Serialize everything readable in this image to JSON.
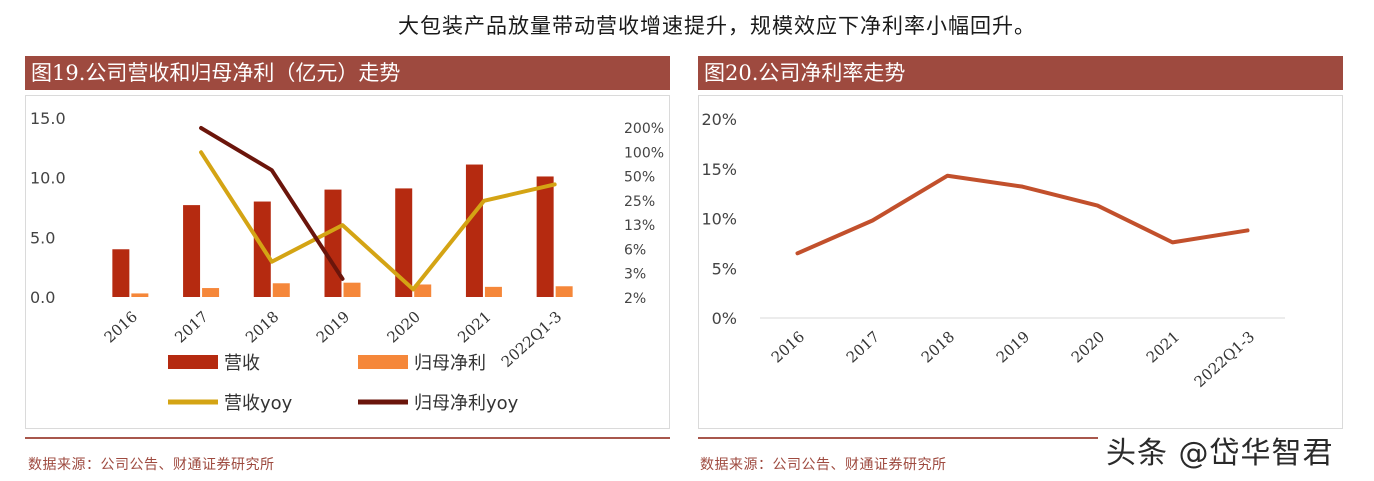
{
  "heading": "大包装产品放量带动营收增速提升，规模效应下净利率小幅回升。",
  "charts": [
    {
      "title": "图19.公司营收和归母净利（亿元）走势",
      "source": "数据来源：公司公告、财通证券研究所"
    },
    {
      "title": "图20.公司净利率走势",
      "source": "数据来源：公司公告、财通证券研究所"
    }
  ],
  "watermark": "头条 @岱华智君",
  "colors": {
    "revenue": "#b52a10",
    "net_profit": "#f5873a",
    "revenue_yoy": "#d4a414",
    "net_profit_yoy": "#6b150b",
    "margin": "#c2502c",
    "title_bg": "#9e4a3f"
  },
  "chart_data": [
    {
      "type": "bar",
      "title": "图19.公司营收和归母净利（亿元）走势",
      "categories": [
        "2016",
        "2017",
        "2018",
        "2019",
        "2020",
        "2021",
        "2022Q1-3"
      ],
      "ylim": [
        0,
        15
      ],
      "yticks": [
        "15.0",
        "10.0",
        "5.0",
        "0.0"
      ],
      "y2ticks": [
        "200%",
        "100%",
        "50%",
        "25%",
        "13%",
        "6%",
        "3%",
        "2%"
      ],
      "series": [
        {
          "name": "营收",
          "kind": "bar",
          "axis": "left",
          "values": [
            4.0,
            7.7,
            8.0,
            9.0,
            9.1,
            11.1,
            10.1
          ]
        },
        {
          "name": "归母净利",
          "kind": "bar",
          "axis": "left",
          "values": [
            0.3,
            0.75,
            1.15,
            1.2,
            1.05,
            0.85,
            0.9
          ]
        },
        {
          "name": "营收yoy",
          "kind": "line",
          "axis": "right",
          "values": [
            null,
            100,
            4.4,
            12.5,
            2,
            25,
            40
          ]
        },
        {
          "name": "归母净利yoy",
          "kind": "line",
          "axis": "right",
          "values": [
            null,
            200,
            60,
            2.7,
            null,
            null,
            null
          ]
        }
      ]
    },
    {
      "type": "line",
      "title": "图20.公司净利率走势",
      "categories": [
        "2016",
        "2017",
        "2018",
        "2019",
        "2020",
        "2021",
        "2022Q1-3"
      ],
      "ylim": [
        0,
        20
      ],
      "yticks": [
        "20%",
        "15%",
        "10%",
        "5%",
        "0%"
      ],
      "series": [
        {
          "name": "净利率",
          "values": [
            6.5,
            9.8,
            14.3,
            13.2,
            11.3,
            7.6,
            8.8
          ]
        }
      ]
    }
  ]
}
